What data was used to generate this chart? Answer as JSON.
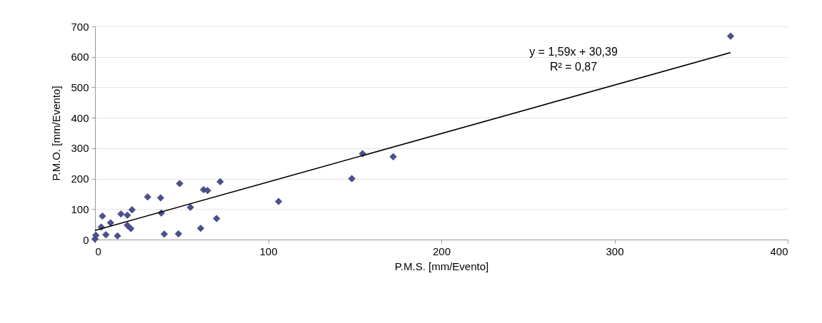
{
  "chart_data": {
    "type": "scatter",
    "xlabel": "P.M.S. [mm/Evento]",
    "ylabel": "P.M.O. [mm/Evento]",
    "xlim": [
      0,
      400
    ],
    "xticks": [
      0,
      100,
      200,
      300,
      400
    ],
    "ylim": [
      0,
      700
    ],
    "yticks": [
      0,
      100,
      200,
      300,
      400,
      500,
      600,
      700
    ],
    "grid": "y",
    "annotations": [
      "y = 1,59x + 30,39",
      "R² = 0,87"
    ],
    "series": [
      {
        "marker": "diamond",
        "color": "#4a4f9a",
        "x": [
          0,
          0.5,
          3.6,
          4.3,
          6.3,
          9,
          13,
          15,
          18.7,
          21.4,
          18.7,
          20.7,
          30.4,
          37.9,
          38.3,
          40,
          48.2,
          48.9,
          55.1,
          61,
          62.7,
          65,
          70.2,
          72.3,
          106,
          148.3,
          154.5,
          172.2,
          367
        ],
        "values": [
          2,
          14,
          41,
          77,
          16,
          55,
          12,
          84,
          80,
          98,
          47,
          36,
          140,
          137,
          87,
          18,
          19,
          184,
          106,
          37,
          164,
          161,
          69,
          190,
          125,
          200,
          282,
          272,
          668
        ]
      },
      {
        "type": "line",
        "color": "#000000",
        "x": [
          0,
          367
        ],
        "values": [
          30,
          614
        ]
      }
    ]
  }
}
